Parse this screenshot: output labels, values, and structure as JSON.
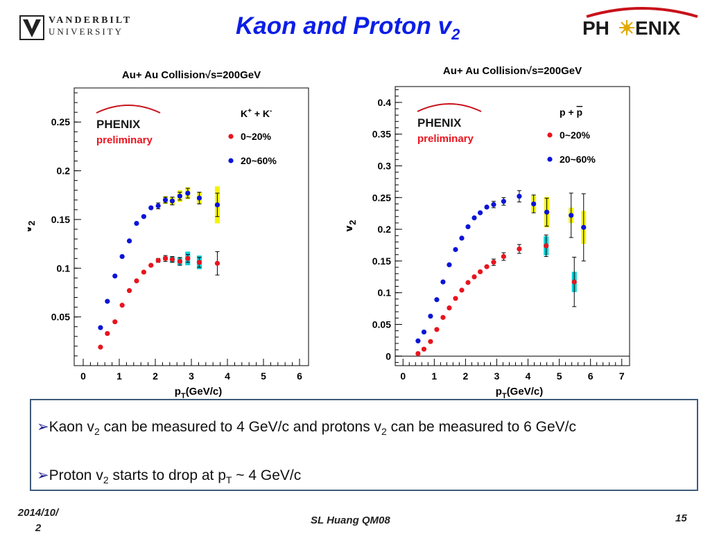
{
  "slide": {
    "title_main": "Kaon and Proton v",
    "title_sub": "2",
    "university_line1": "VANDERBILT",
    "university_line2": "UNIVERSITY",
    "phenix_logo_left": "PH",
    "phenix_logo_right": "ENIX"
  },
  "bullets": [
    {
      "p1": "Kaon v",
      "s1": "2",
      "p2": " can be measured to 4 GeV/c and protons v",
      "s2": "2",
      "p3": " can be measured to 6 GeV/c"
    },
    {
      "p1": "Proton v",
      "s1": "2",
      "p2": " starts to drop at p",
      "s2": "T",
      "p3": " ~ 4 GeV/c"
    }
  ],
  "footer": {
    "date_line1": "2014/10/",
    "date_line2": "2",
    "center": "SL Huang QM08",
    "page": "15"
  },
  "colors": {
    "title": "#0b1ee6",
    "central": "#e8141e",
    "peripheral": "#0a14d6",
    "sys_peripheral": "#f4f400",
    "sys_central": "#00cfd6",
    "preliminary": "#e8141e",
    "box_border": "#3f5b79"
  },
  "chart_data": [
    {
      "type": "scatter",
      "title": "Au+ Au Collision√s=200GeV",
      "xlabel": "p_T(GeV/c)",
      "ylabel": "v_2",
      "xlim": [
        -0.25,
        6.25
      ],
      "ylim": [
        0.0,
        0.285
      ],
      "xticks": [
        0,
        1,
        2,
        3,
        4,
        5,
        6
      ],
      "yticks": [
        0.05,
        0.1,
        0.15,
        0.2,
        0.25
      ],
      "ytick_labels": [
        "0.05",
        "0.1",
        "0.15",
        "0.2",
        "0.25"
      ],
      "zero_line": false,
      "logo_text": "PHENIX",
      "preliminary": "preliminary",
      "legend_title": {
        "base": "K",
        "sup1": "+",
        "mid": " + K",
        "sup2": "-"
      },
      "series": [
        {
          "name": "0~20%",
          "color": "#e8141e",
          "x": [
            0.48,
            0.67,
            0.88,
            1.08,
            1.28,
            1.48,
            1.68,
            1.88,
            2.08,
            2.28,
            2.47,
            2.68,
            2.9,
            3.22,
            3.72
          ],
          "y": [
            0.019,
            0.033,
            0.045,
            0.062,
            0.077,
            0.087,
            0.096,
            0.103,
            0.108,
            0.11,
            0.109,
            0.107,
            0.11,
            0.106,
            0.105
          ],
          "err": [
            0,
            0,
            0,
            0,
            0,
            0,
            0,
            0,
            0.002,
            0.003,
            0.003,
            0.004,
            0.004,
            0.005,
            0.012
          ],
          "sys": [
            0,
            0,
            0,
            0,
            0,
            0,
            0,
            0,
            0,
            0.002,
            0.003,
            0.004,
            0.007,
            0.007,
            0
          ]
        },
        {
          "name": "20~60%",
          "color": "#0a14d6",
          "x": [
            0.48,
            0.67,
            0.88,
            1.08,
            1.28,
            1.48,
            1.68,
            1.88,
            2.08,
            2.28,
            2.47,
            2.68,
            2.9,
            3.22,
            3.72
          ],
          "y": [
            0.039,
            0.066,
            0.092,
            0.112,
            0.128,
            0.146,
            0.153,
            0.162,
            0.164,
            0.17,
            0.169,
            0.174,
            0.177,
            0.172,
            0.165
          ],
          "err": [
            0,
            0,
            0,
            0,
            0,
            0,
            0,
            0,
            0.003,
            0.003,
            0.004,
            0.004,
            0.005,
            0.006,
            0.012
          ],
          "sys": [
            0,
            0,
            0,
            0,
            0,
            0,
            0,
            0,
            0,
            0.004,
            0.004,
            0.006,
            0.006,
            0.006,
            0.019
          ]
        }
      ]
    },
    {
      "type": "scatter",
      "title": "Au+ Au Collision√s=200GeV",
      "xlabel": "p_T(GeV/c)",
      "ylabel": "v_2",
      "xlim": [
        -0.25,
        7.25
      ],
      "ylim": [
        -0.015,
        0.425
      ],
      "xticks": [
        0,
        1,
        2,
        3,
        4,
        5,
        6,
        7
      ],
      "yticks": [
        0,
        0.05,
        0.1,
        0.15,
        0.2,
        0.25,
        0.3,
        0.35,
        0.4
      ],
      "ytick_labels": [
        "0",
        "0.05",
        "0.1",
        "0.15",
        "0.2",
        "0.25",
        "0.3",
        "0.35",
        "0.4"
      ],
      "zero_line": true,
      "logo_text": "PHENIX",
      "preliminary": "preliminary",
      "legend_title": {
        "base": "p + ",
        "bar": "p"
      },
      "series": [
        {
          "name": "0~20%",
          "color": "#e8141e",
          "x": [
            0.48,
            0.67,
            0.88,
            1.08,
            1.28,
            1.48,
            1.68,
            1.88,
            2.08,
            2.28,
            2.47,
            2.68,
            2.9,
            3.22,
            3.72,
            4.58,
            5.48
          ],
          "y": [
            0.004,
            0.011,
            0.023,
            0.042,
            0.061,
            0.076,
            0.091,
            0.104,
            0.116,
            0.125,
            0.133,
            0.141,
            0.148,
            0.157,
            0.169,
            0.174,
            0.117
          ],
          "err": [
            0,
            0,
            0,
            0,
            0,
            0,
            0,
            0,
            0,
            0,
            0,
            0,
            0.005,
            0.006,
            0.007,
            0.017,
            0.039
          ],
          "sys": [
            0,
            0,
            0,
            0,
            0,
            0,
            0,
            0,
            0,
            0,
            0,
            0,
            0,
            0,
            0,
            0.015,
            0.016
          ]
        },
        {
          "name": "20~60%",
          "color": "#0a14d6",
          "x": [
            0.48,
            0.67,
            0.88,
            1.08,
            1.28,
            1.48,
            1.68,
            1.88,
            2.08,
            2.28,
            2.47,
            2.68,
            2.9,
            3.22,
            3.72,
            4.18,
            4.6,
            5.38,
            5.78
          ],
          "y": [
            0.024,
            0.038,
            0.063,
            0.089,
            0.117,
            0.144,
            0.168,
            0.186,
            0.204,
            0.218,
            0.226,
            0.235,
            0.239,
            0.244,
            0.252,
            0.24,
            0.227,
            0.222,
            0.203
          ],
          "err": [
            0,
            0,
            0,
            0,
            0,
            0,
            0,
            0,
            0,
            0,
            0,
            0,
            0.005,
            0.006,
            0.009,
            0.014,
            0.022,
            0.035,
            0.053
          ],
          "sys": [
            0,
            0,
            0,
            0,
            0,
            0,
            0,
            0,
            0,
            0,
            0,
            0,
            0,
            0,
            0,
            0.013,
            0.024,
            0.012,
            0.026
          ]
        }
      ]
    }
  ]
}
